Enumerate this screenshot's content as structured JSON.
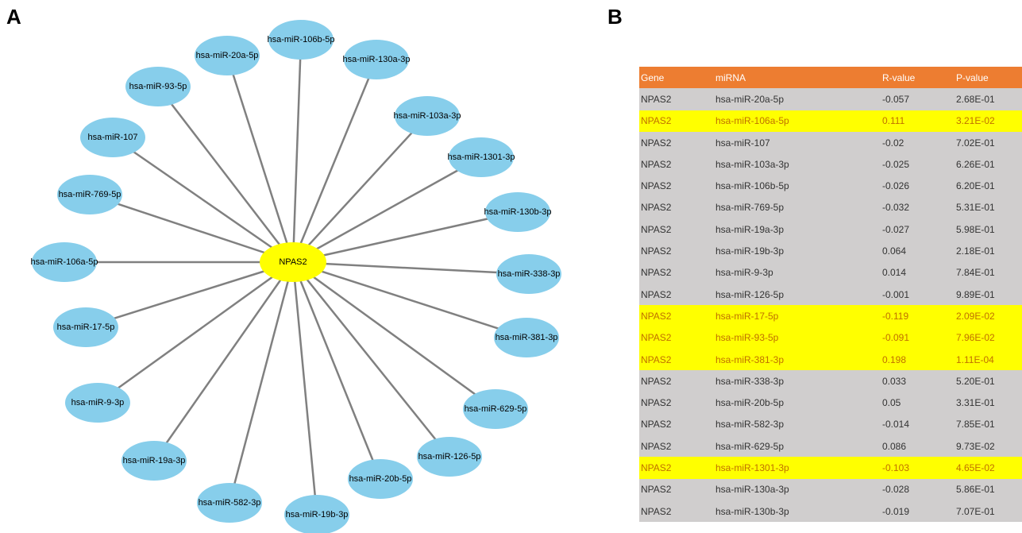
{
  "panel_labels": [
    "A",
    "B"
  ],
  "network": {
    "center": "NPAS2",
    "nodes": [
      "hsa-miR-20a-5p",
      "hsa-miR-106b-5p",
      "hsa-miR-130a-3p",
      "hsa-miR-93-5p",
      "hsa-miR-103a-3p",
      "hsa-miR-107",
      "hsa-miR-1301-3p",
      "hsa-miR-769-5p",
      "hsa-miR-130b-3p",
      "hsa-miR-106a-5p",
      "hsa-miR-338-3p",
      "hsa-miR-17-5p",
      "hsa-miR-381-3p",
      "hsa-miR-9-3p",
      "hsa-miR-629-5p",
      "hsa-miR-19a-3p",
      "hsa-miR-126-5p",
      "hsa-miR-582-3p",
      "hsa-miR-20b-5p",
      "hsa-miR-19b-3p"
    ]
  },
  "table": {
    "header": [
      "Gene",
      "miRNA",
      "R-value",
      "P-value"
    ],
    "rows": [
      {
        "cells": [
          "NPAS2",
          "hsa-miR-20a-5p",
          "-0.057",
          "2.68E-01"
        ],
        "highlight": false
      },
      {
        "cells": [
          "NPAS2",
          "hsa-miR-106a-5p",
          "0.111",
          "3.21E-02"
        ],
        "highlight": true
      },
      {
        "cells": [
          "NPAS2",
          "hsa-miR-107",
          "-0.02",
          "7.02E-01"
        ],
        "highlight": false
      },
      {
        "cells": [
          "NPAS2",
          "hsa-miR-103a-3p",
          "-0.025",
          "6.26E-01"
        ],
        "highlight": false
      },
      {
        "cells": [
          "NPAS2",
          "hsa-miR-106b-5p",
          "-0.026",
          "6.20E-01"
        ],
        "highlight": false
      },
      {
        "cells": [
          "NPAS2",
          "hsa-miR-769-5p",
          "-0.032",
          "5.31E-01"
        ],
        "highlight": false
      },
      {
        "cells": [
          "NPAS2",
          "hsa-miR-19a-3p",
          "-0.027",
          "5.98E-01"
        ],
        "highlight": false
      },
      {
        "cells": [
          "NPAS2",
          "hsa-miR-19b-3p",
          "0.064",
          "2.18E-01"
        ],
        "highlight": false
      },
      {
        "cells": [
          "NPAS2",
          "hsa-miR-9-3p",
          "0.014",
          "7.84E-01"
        ],
        "highlight": false
      },
      {
        "cells": [
          "NPAS2",
          "hsa-miR-126-5p",
          "-0.001",
          "9.89E-01"
        ],
        "highlight": false
      },
      {
        "cells": [
          "NPAS2",
          "hsa-miR-17-5p",
          "-0.119",
          "2.09E-02"
        ],
        "highlight": true
      },
      {
        "cells": [
          "NPAS2",
          "hsa-miR-93-5p",
          "-0.091",
          "7.96E-02"
        ],
        "highlight": true
      },
      {
        "cells": [
          "NPAS2",
          "hsa-miR-381-3p",
          "0.198",
          "1.11E-04"
        ],
        "highlight": true
      },
      {
        "cells": [
          "NPAS2",
          "hsa-miR-338-3p",
          "0.033",
          "5.20E-01"
        ],
        "highlight": false
      },
      {
        "cells": [
          "NPAS2",
          "hsa-miR-20b-5p",
          "0.05",
          "3.31E-01"
        ],
        "highlight": false
      },
      {
        "cells": [
          "NPAS2",
          "hsa-miR-582-3p",
          "-0.014",
          "7.85E-01"
        ],
        "highlight": false
      },
      {
        "cells": [
          "NPAS2",
          "hsa-miR-629-5p",
          "0.086",
          "9.73E-02"
        ],
        "highlight": false
      },
      {
        "cells": [
          "NPAS2",
          "hsa-miR-1301-3p",
          "-0.103",
          "4.65E-02"
        ],
        "highlight": true
      },
      {
        "cells": [
          "NPAS2",
          "hsa-miR-130a-3p",
          "-0.028",
          "5.86E-01"
        ],
        "highlight": false
      },
      {
        "cells": [
          "NPAS2",
          "hsa-miR-130b-3p",
          "-0.019",
          "7.07E-01"
        ],
        "highlight": false
      }
    ]
  }
}
